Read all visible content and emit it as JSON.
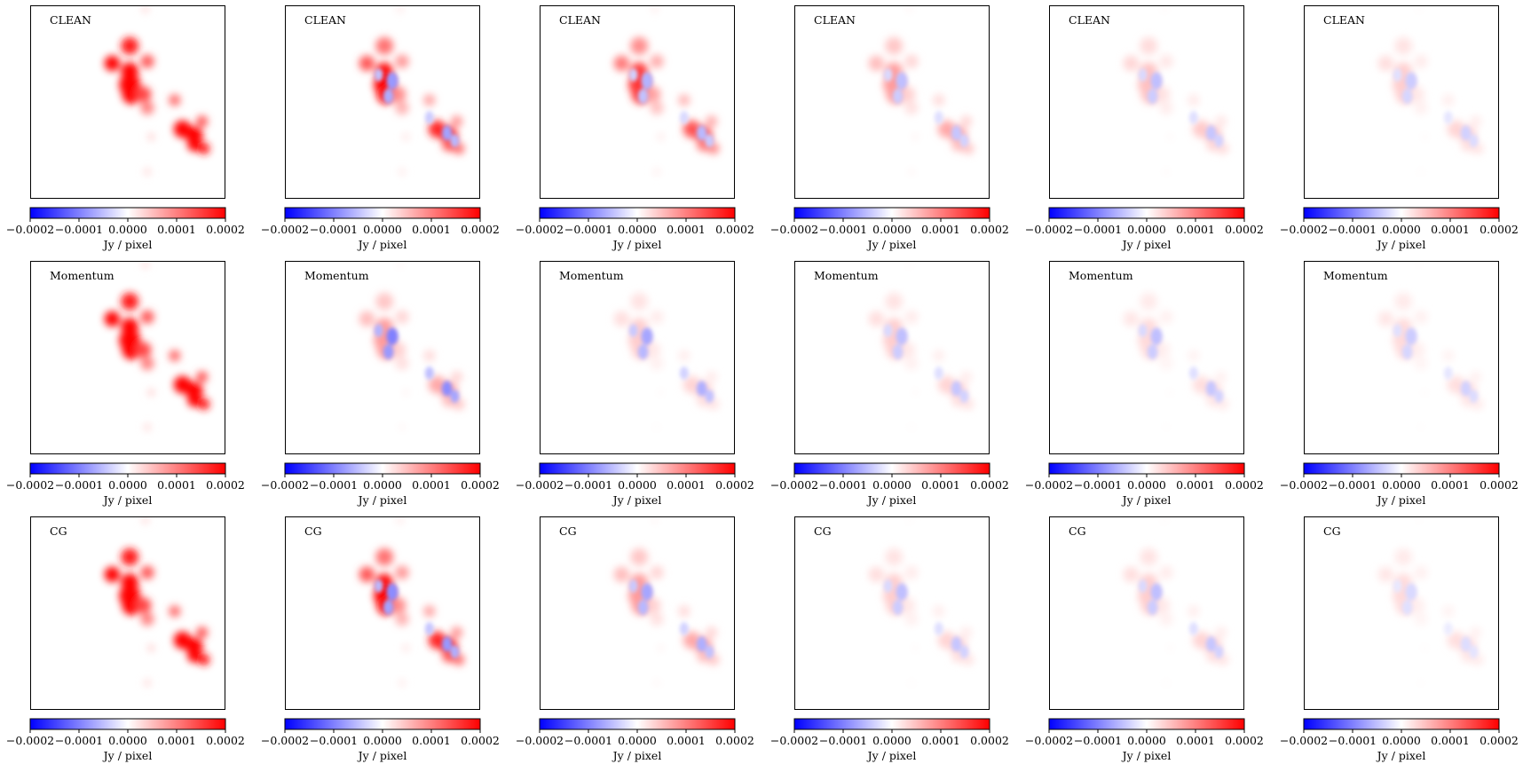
{
  "chart_data": {
    "type": "heatmap",
    "description_rows": [
      "CLEAN",
      "Momentum",
      "CG"
    ],
    "panels_per_row": 6,
    "colormap": [
      "#0000ff",
      "#ffffff",
      "#ff0000"
    ],
    "colorbar": {
      "vmin": -0.0002,
      "vmax": 0.0002,
      "ticks": [
        "−0.0002",
        "−0.0001",
        "0.0000",
        "0.0001",
        "0.0002"
      ],
      "label": "Jy / pixel"
    },
    "grid": false,
    "axes_ticks_shown": false,
    "panels": [
      {
        "row": "CLEAN",
        "col": 1,
        "label": "CLEAN",
        "peak": 0.0002,
        "neg": 0.0
      },
      {
        "row": "CLEAN",
        "col": 2,
        "label": "CLEAN",
        "peak": 0.0002,
        "neg": -8e-05
      },
      {
        "row": "CLEAN",
        "col": 3,
        "label": "CLEAN",
        "peak": 0.00016,
        "neg": -6e-05
      },
      {
        "row": "CLEAN",
        "col": 4,
        "label": "CLEAN",
        "peak": 8e-05,
        "neg": -5e-05
      },
      {
        "row": "CLEAN",
        "col": 5,
        "label": "CLEAN",
        "peak": 5e-05,
        "neg": -5e-05
      },
      {
        "row": "CLEAN",
        "col": 6,
        "label": "CLEAN",
        "peak": 4e-05,
        "neg": -4e-05
      },
      {
        "row": "Momentum",
        "col": 1,
        "label": "Momentum",
        "peak": 0.0002,
        "neg": 0.0
      },
      {
        "row": "Momentum",
        "col": 2,
        "label": "Momentum",
        "peak": 8e-05,
        "neg": -0.0001
      },
      {
        "row": "Momentum",
        "col": 3,
        "label": "Momentum",
        "peak": 4e-05,
        "neg": -7e-05
      },
      {
        "row": "Momentum",
        "col": 4,
        "label": "Momentum",
        "peak": 4e-05,
        "neg": -5e-05
      },
      {
        "row": "Momentum",
        "col": 5,
        "label": "Momentum",
        "peak": 3e-05,
        "neg": -5e-05
      },
      {
        "row": "Momentum",
        "col": 6,
        "label": "Momentum",
        "peak": 3e-05,
        "neg": -4e-05
      },
      {
        "row": "CG",
        "col": 1,
        "label": "CG",
        "peak": 0.0002,
        "neg": 0.0
      },
      {
        "row": "CG",
        "col": 2,
        "label": "CG",
        "peak": 0.0002,
        "neg": -9e-05
      },
      {
        "row": "CG",
        "col": 3,
        "label": "CG",
        "peak": 8e-05,
        "neg": -7e-05
      },
      {
        "row": "CG",
        "col": 4,
        "label": "CG",
        "peak": 4e-05,
        "neg": -5e-05
      },
      {
        "row": "CG",
        "col": 5,
        "label": "CG",
        "peak": 4e-05,
        "neg": -5e-05
      },
      {
        "row": "CG",
        "col": 6,
        "label": "CG",
        "peak": 3e-05,
        "neg": -3e-05
      }
    ]
  }
}
